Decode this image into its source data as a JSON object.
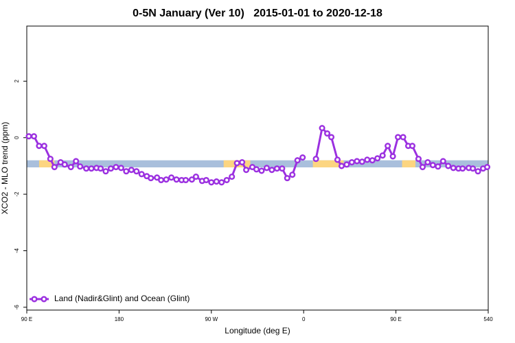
{
  "chart_data": {
    "type": "line",
    "title": "0-5N January (Ver 10)   2015-01-01 to 2020-12-18",
    "x_label": "Longitude (deg E)",
    "y_label": "XCO2 - MLO trend (ppm)",
    "xlim": [
      90,
      540
    ],
    "ylim": [
      -6.1,
      3.95
    ],
    "xticks": [
      {
        "value": 90,
        "label": "90 E"
      },
      180,
      {
        "value": 270,
        "label": "90 W"
      },
      {
        "value": 360,
        "label": "0"
      },
      {
        "value": 450,
        "label": "90 E"
      },
      540
    ],
    "yticks": [
      -6,
      -4,
      -2,
      0,
      2
    ],
    "legend": "bottom-left",
    "band": {
      "range": [
        -1.05,
        -0.8
      ],
      "color": "#a9bfdc",
      "land_color": "#fcd581",
      "land": [
        [
          102,
          117
        ],
        [
          282,
          308
        ],
        [
          369,
          399
        ],
        [
          456,
          469
        ]
      ]
    },
    "x": [
      92,
      97,
      102,
      107,
      113,
      117,
      123,
      127,
      133,
      138,
      142,
      148,
      153,
      158,
      162,
      167,
      172,
      177,
      182,
      187,
      192,
      197,
      202,
      207,
      211,
      217,
      221,
      226,
      231,
      236,
      241,
      245,
      251,
      255,
      261,
      265,
      270,
      275,
      280,
      285,
      290,
      295,
      300,
      304,
      310,
      314,
      319,
      324,
      329,
      334,
      339,
      344,
      349,
      354,
      359,
      365,
      372,
      378,
      383,
      387,
      393,
      397,
      402,
      407,
      412,
      417,
      422,
      427,
      432,
      437,
      442,
      447,
      452,
      457,
      462,
      466,
      472,
      476,
      481,
      486,
      491,
      496,
      501,
      506,
      511,
      515,
      521,
      525,
      530,
      535,
      539
    ],
    "series": [
      {
        "name": "Land (Nadir&Glint) and Ocean (Glint)",
        "color": "#9b30e0",
        "values": [
          0.05,
          0.05,
          -0.29,
          -0.29,
          -0.75,
          -1.04,
          -0.87,
          -0.95,
          -1.04,
          -0.83,
          -1.02,
          -1.09,
          -1.09,
          -1.07,
          -1.09,
          -1.19,
          -1.09,
          -1.04,
          -1.07,
          -1.19,
          -1.14,
          -1.19,
          -1.29,
          -1.36,
          -1.43,
          -1.41,
          -1.5,
          -1.48,
          -1.41,
          -1.48,
          -1.5,
          -1.5,
          -1.48,
          -1.38,
          -1.53,
          -1.5,
          -1.58,
          -1.55,
          -1.58,
          -1.5,
          -1.38,
          -0.9,
          -0.87,
          -1.14,
          -1.04,
          -1.12,
          -1.17,
          -1.07,
          -1.14,
          -1.09,
          -1.09,
          -1.43,
          -1.31,
          -0.8,
          -0.7,
          null,
          -0.75,
          0.34,
          0.15,
          0.02,
          -0.78,
          -1.0,
          -0.95,
          -0.87,
          -0.83,
          -0.85,
          -0.78,
          -0.8,
          -0.73,
          -0.63,
          -0.29,
          -0.66,
          0.02,
          0.02,
          -0.29,
          -0.29,
          -0.75,
          -1.04,
          -0.87,
          -0.97,
          -1.02,
          -0.83,
          -1.0,
          -1.07,
          -1.09,
          -1.09,
          -1.07,
          -1.09,
          -1.19,
          -1.09,
          -1.04
        ]
      }
    ]
  }
}
